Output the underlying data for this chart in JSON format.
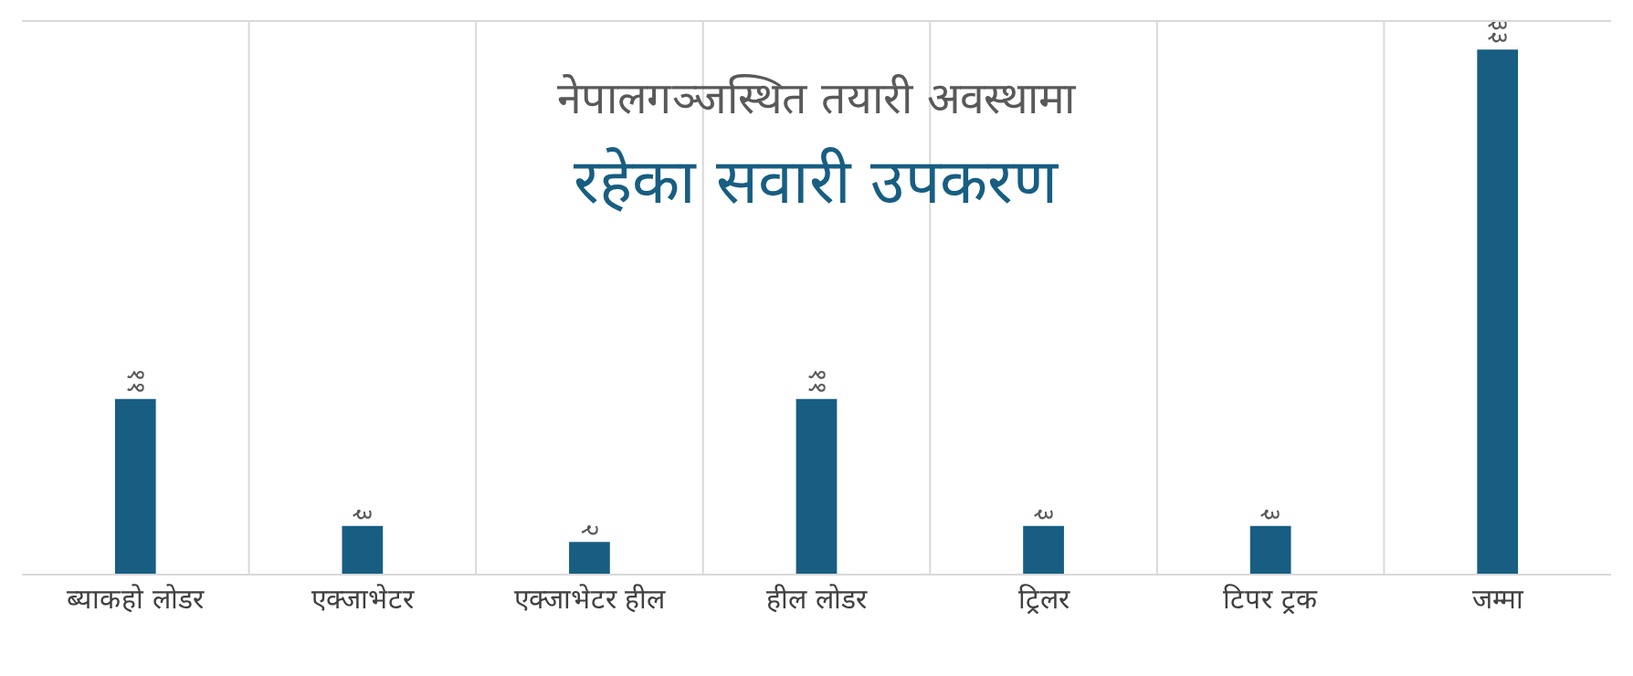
{
  "chart_data": {
    "type": "bar",
    "title": "नेपालगञ्जस्थित तयारी अवस्थामा",
    "subtitle": "रहेका सवारी उपकरण",
    "categories": [
      "ब्याकहो लोडर",
      "एक्जाभेटर",
      "एक्जाभेटर हील",
      "हील लोडर",
      "ट्रिलर",
      "टिपर ट्रक",
      "जम्मा"
    ],
    "values": [
      11,
      3,
      2,
      11,
      3,
      3,
      33
    ],
    "value_labels": [
      "११",
      "३",
      "२",
      "११",
      "३",
      "३",
      "३३"
    ],
    "color": "#175e82",
    "grid": "x",
    "legend": false
  }
}
